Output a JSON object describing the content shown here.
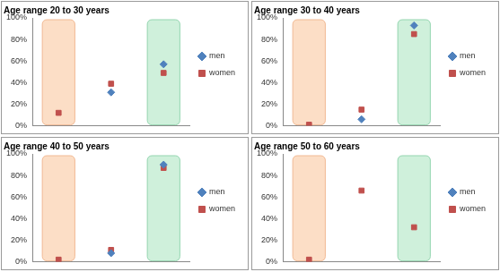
{
  "chart_data": [
    {
      "type": "scatter",
      "title": "Age range 20 to 30 years",
      "categories": [
        null,
        null,
        null
      ],
      "series": [
        {
          "name": "men",
          "color": "#4f81bd",
          "marker": "diamond",
          "values": [
            null,
            31,
            57
          ]
        },
        {
          "name": "women",
          "color": "#c0504d",
          "marker": "square",
          "values": [
            12,
            39,
            49
          ]
        }
      ],
      "ylim": [
        0,
        100
      ],
      "yticks": [
        {
          "value": 0,
          "label": "0%"
        },
        {
          "value": 20,
          "label": "20%"
        },
        {
          "value": 40,
          "label": "40%"
        },
        {
          "value": 60,
          "label": "60%"
        },
        {
          "value": 80,
          "label": "80%"
        },
        {
          "value": 100,
          "label": "100%"
        }
      ],
      "grid": false,
      "legend": "right",
      "tick_labels": "y"
    },
    {
      "type": "scatter",
      "title": "Age range 30 to 40 years",
      "categories": [
        null,
        null,
        null
      ],
      "series": [
        {
          "name": "men",
          "color": "#4f81bd",
          "marker": "diamond",
          "values": [
            null,
            6,
            93
          ]
        },
        {
          "name": "women",
          "color": "#c0504d",
          "marker": "square",
          "values": [
            1,
            15,
            85
          ]
        }
      ],
      "ylim": [
        0,
        100
      ],
      "yticks": [
        {
          "value": 0,
          "label": "0%"
        },
        {
          "value": 20,
          "label": "20%"
        },
        {
          "value": 40,
          "label": "40%"
        },
        {
          "value": 60,
          "label": "60%"
        },
        {
          "value": 80,
          "label": "80%"
        },
        {
          "value": 100,
          "label": "100%"
        }
      ],
      "grid": false,
      "legend": "right",
      "tick_labels": "y"
    },
    {
      "type": "scatter",
      "title": "Age range 40 to 50 years",
      "categories": [
        null,
        null,
        null
      ],
      "series": [
        {
          "name": "men",
          "color": "#4f81bd",
          "marker": "diamond",
          "values": [
            null,
            8,
            90
          ]
        },
        {
          "name": "women",
          "color": "#c0504d",
          "marker": "square",
          "values": [
            2,
            11,
            87
          ]
        }
      ],
      "ylim": [
        0,
        100
      ],
      "yticks": [
        {
          "value": 0,
          "label": "0%"
        },
        {
          "value": 20,
          "label": "20%"
        },
        {
          "value": 40,
          "label": "40%"
        },
        {
          "value": 60,
          "label": "60%"
        },
        {
          "value": 80,
          "label": "80%"
        },
        {
          "value": 100,
          "label": "100%"
        }
      ],
      "grid": false,
      "legend": "right",
      "tick_labels": "y"
    },
    {
      "type": "scatter",
      "title": "Age range 50 to 60 years",
      "categories": [
        null,
        null,
        null
      ],
      "series": [
        {
          "name": "men",
          "color": "#4f81bd",
          "marker": "diamond",
          "values": [
            null,
            null,
            null
          ]
        },
        {
          "name": "women",
          "color": "#c0504d",
          "marker": "square",
          "values": [
            2,
            66,
            32
          ]
        }
      ],
      "ylim": [
        0,
        100
      ],
      "yticks": [
        {
          "value": 0,
          "label": "0%"
        },
        {
          "value": 20,
          "label": "20%"
        },
        {
          "value": 40,
          "label": "40%"
        },
        {
          "value": 60,
          "label": "60%"
        },
        {
          "value": 80,
          "label": "80%"
        },
        {
          "value": 100,
          "label": "100%"
        }
      ],
      "grid": false,
      "legend": "right",
      "tick_labels": "y"
    }
  ]
}
